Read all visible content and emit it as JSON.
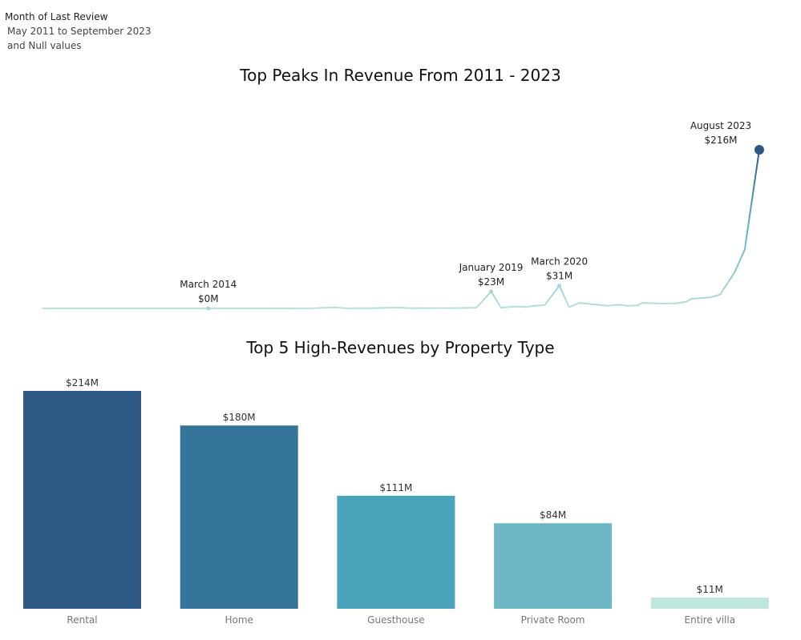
{
  "filter": {
    "title": "Month of Last Review",
    "line1": "May 2011 to September 2023",
    "line2": "and Null values"
  },
  "chart_data": [
    {
      "type": "line",
      "title": "Top Peaks In Revenue From 2011 - 2023",
      "xlabel": "",
      "ylabel": "",
      "unit": "$M",
      "series": [
        {
          "points": [
            {
              "x": "2011-05",
              "y": 0
            },
            {
              "x": "2012-01",
              "y": 0
            },
            {
              "x": "2013-01",
              "y": 0
            },
            {
              "x": "2014-03",
              "y": 0
            },
            {
              "x": "2015-01",
              "y": 0
            },
            {
              "x": "2016-01",
              "y": 0.2
            },
            {
              "x": "2016-05",
              "y": 1.5
            },
            {
              "x": "2016-07",
              "y": 0.1
            },
            {
              "x": "2017-01",
              "y": 0.3
            },
            {
              "x": "2017-06",
              "y": 1.2
            },
            {
              "x": "2017-08",
              "y": 0.3
            },
            {
              "x": "2018-06",
              "y": 0.4
            },
            {
              "x": "2018-10",
              "y": 1.0
            },
            {
              "x": "2019-01",
              "y": 23
            },
            {
              "x": "2019-03",
              "y": 1.0
            },
            {
              "x": "2019-06",
              "y": 2.5
            },
            {
              "x": "2019-08",
              "y": 2.0
            },
            {
              "x": "2019-10",
              "y": 3.5
            },
            {
              "x": "2019-12",
              "y": 4.5
            },
            {
              "x": "2020-03",
              "y": 31
            },
            {
              "x": "2020-05",
              "y": 1.5
            },
            {
              "x": "2020-07",
              "y": 7.5
            },
            {
              "x": "2020-10",
              "y": 5.5
            },
            {
              "x": "2021-01",
              "y": 3.5
            },
            {
              "x": "2021-03",
              "y": 5.0
            },
            {
              "x": "2021-05",
              "y": 3.5
            },
            {
              "x": "2021-07",
              "y": 4.0
            },
            {
              "x": "2021-08",
              "y": 7.5
            },
            {
              "x": "2021-12",
              "y": 6.5
            },
            {
              "x": "2022-03",
              "y": 7.0
            },
            {
              "x": "2022-05",
              "y": 9.0
            },
            {
              "x": "2022-06",
              "y": 13
            },
            {
              "x": "2022-10",
              "y": 15
            },
            {
              "x": "2022-12",
              "y": 19
            },
            {
              "x": "2023-03",
              "y": 50
            },
            {
              "x": "2023-05",
              "y": 80
            },
            {
              "x": "2023-08",
              "y": 216
            }
          ]
        }
      ],
      "annotations": [
        {
          "x": "2014-03",
          "label": "March 2014",
          "value": "$0M",
          "y": 0
        },
        {
          "x": "2019-01",
          "label": "January 2019",
          "value": "$23M",
          "y": 23
        },
        {
          "x": "2020-03",
          "label": "March 2020",
          "value": "$31M",
          "y": 31
        },
        {
          "x": "2023-08",
          "label": "August 2023",
          "value": "$216M",
          "y": 216
        }
      ],
      "grid": false,
      "colors": {
        "start": "#b9dfe0",
        "end": "#2d5784",
        "mid": "#5aaec3"
      }
    },
    {
      "type": "bar",
      "title": "Top 5  High-Revenues by Property Type",
      "categories": [
        "Rental",
        "Home",
        "Guesthouse",
        "Private Room",
        "Entire villa"
      ],
      "values": [
        214,
        180,
        111,
        84,
        11
      ],
      "value_labels": [
        "$214M",
        "$180M",
        "$111M",
        "$84M",
        "$11M"
      ],
      "unit": "$M",
      "xlabel": "",
      "ylabel": "",
      "ylim": [
        0,
        214
      ],
      "colors": [
        "#2e5985",
        "#347599",
        "#4aa5bc",
        "#6db7c5",
        "#bfe6dd"
      ]
    }
  ]
}
